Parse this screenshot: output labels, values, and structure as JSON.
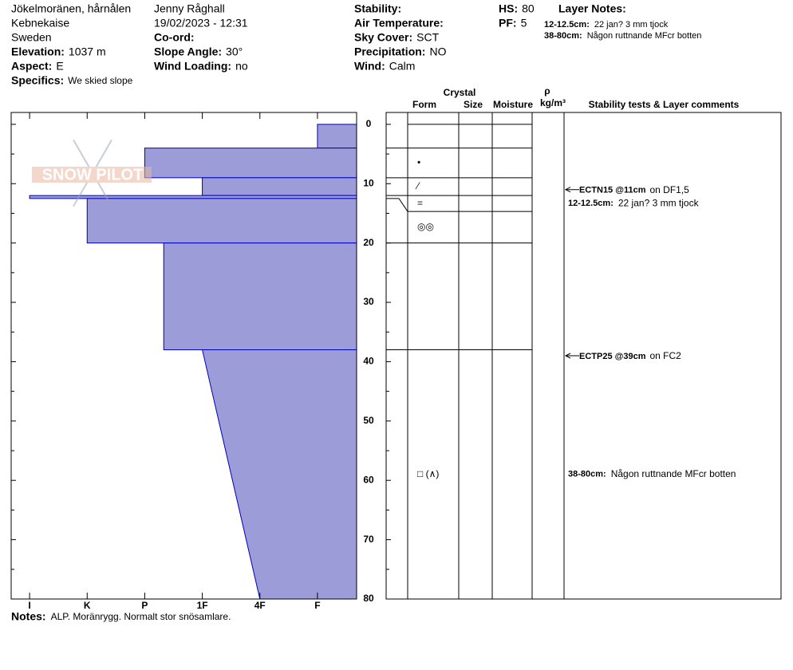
{
  "header": {
    "col1": {
      "location": "Jökelmoränen, hårnålen",
      "area": "Kebnekaise",
      "country": "Sweden",
      "fields": [
        {
          "label": "Elevation:",
          "value": "1037 m"
        },
        {
          "label": "Aspect:",
          "value": "E"
        },
        {
          "label": "Specifics:",
          "value": "We skied slope"
        }
      ]
    },
    "col2": {
      "observer": "Jenny Råghall",
      "datetime": "19/02/2023 - 12:31",
      "fields": [
        {
          "label": "Co-ord:"
        },
        {
          "label": "Slope Angle:",
          "value": "30°"
        },
        {
          "label": "Wind Loading:",
          "value": "no"
        }
      ]
    },
    "col3": {
      "fields": [
        {
          "label": "Stability:"
        },
        {
          "label": "Air Temperature:"
        },
        {
          "label": "Sky Cover:",
          "value": "SCT"
        },
        {
          "label": "Precipitation:",
          "value": "NO"
        },
        {
          "label": "Wind:",
          "value": "Calm"
        }
      ]
    },
    "col4": {
      "fields": [
        {
          "label": "HS:",
          "value": "80"
        },
        {
          "label": "PF:",
          "value": "5"
        }
      ]
    },
    "layer_notes_title": "Layer Notes:",
    "layer_notes": [
      {
        "range": "12-12.5cm:",
        "text": "22 jan? 3 mm tjock",
        "layer": 3
      },
      {
        "range": "38-80cm:",
        "text": "Någon ruttnande MFcr botten",
        "layer": 6
      }
    ]
  },
  "logo": "SNOW PILOT",
  "columns": {
    "crystal": "Crystal",
    "form": "Form",
    "size": "Size",
    "moisture": "Moisture",
    "rho": "ρ",
    "density_unit": "kg/m³",
    "comments": "Stability tests & Layer comments"
  },
  "chart_data": {
    "type": "snow-profile",
    "color": "#9c9cd8",
    "edge_color": "#0000c0",
    "ylim": [
      -2,
      80
    ],
    "yticks": [
      0,
      10,
      20,
      30,
      40,
      50,
      60,
      70,
      80
    ],
    "yminorticks": [
      5,
      15,
      25,
      35,
      45,
      55,
      65,
      75
    ],
    "xlim": [
      0.68,
      6.68
    ],
    "xticks": [
      {
        "value": 1,
        "label": "I"
      },
      {
        "value": 2,
        "label": "K"
      },
      {
        "value": 3,
        "label": "P"
      },
      {
        "value": 4,
        "label": "1F"
      },
      {
        "value": 5,
        "label": "4F"
      },
      {
        "value": 6,
        "label": "F"
      }
    ],
    "layers": [
      {
        "top": 0,
        "bottom": 4,
        "hardness": 6
      },
      {
        "top": 4,
        "bottom": 9,
        "hardness": 3,
        "form": "•"
      },
      {
        "top": 9,
        "bottom": 12,
        "hardness": 4,
        "form": "⁄"
      },
      {
        "top": 12,
        "bottom": 12.5,
        "hardness": 1,
        "form": "="
      },
      {
        "top": 12.5,
        "bottom": 20,
        "hardness": 2,
        "form": "◎◎"
      },
      {
        "top": 20,
        "bottom": 38,
        "hardness": 3.33
      },
      {
        "top": 38,
        "bottom": 80,
        "hardness": 4,
        "hardness_bottom": 5,
        "form": "□ (∧)"
      }
    ],
    "tests": [
      {
        "label": "ECTN15 @11cm",
        "on": "on DF1,5",
        "depth": 11
      },
      {
        "label": "ECTP25 @39cm",
        "on": "on FC2",
        "depth": 39
      }
    ]
  },
  "notes": {
    "label": "Notes:",
    "text": "ALP. Moränrygg. Normalt stor snösamlare."
  }
}
